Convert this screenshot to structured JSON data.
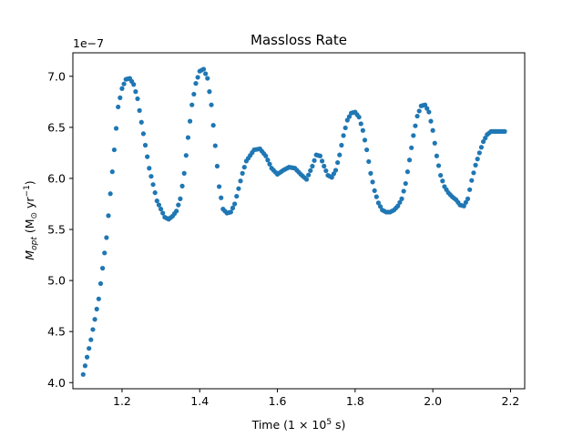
{
  "chart_data": {
    "type": "scatter",
    "title": "Massloss Rate",
    "xlabel": "Time (1 × 10",
    "xlabel_exp": "5",
    "xlabel_suffix": " s)",
    "ylabel_main": "M",
    "ylabel_sub": "opt",
    "ylabel_unit_pre": " (M",
    "ylabel_unit_sun": "⊙",
    "ylabel_unit_mid": " yr",
    "ylabel_unit_exp": "−1",
    "ylabel_unit_post": ")",
    "y_offset_label": "1e−7",
    "xlim": [
      1.0735,
      2.2365
    ],
    "ylim": [
      3.94,
      7.23
    ],
    "x_ticks": [
      1.2,
      1.4,
      1.6,
      1.8,
      2.0,
      2.2
    ],
    "x_tick_labels": [
      "1.2",
      "1.4",
      "1.6",
      "1.8",
      "2.0",
      "2.2"
    ],
    "y_ticks": [
      4.0,
      4.5,
      5.0,
      5.5,
      6.0,
      6.5,
      7.0
    ],
    "y_tick_labels": [
      "4.0",
      "4.5",
      "5.0",
      "5.5",
      "6.0",
      "6.5",
      "7.0"
    ],
    "grid": false,
    "marker_color": "#1f77b4",
    "series": [
      {
        "x_start": 1.1,
        "x_end": 2.185,
        "x_step": 0.005,
        "curve_x": [
          1.1,
          1.12,
          1.14,
          1.16,
          1.18,
          1.19,
          1.2,
          1.21,
          1.22,
          1.23,
          1.24,
          1.25,
          1.27,
          1.29,
          1.31,
          1.32,
          1.33,
          1.34,
          1.35,
          1.36,
          1.37,
          1.38,
          1.39,
          1.4,
          1.41,
          1.42,
          1.43,
          1.44,
          1.45,
          1.46,
          1.47,
          1.48,
          1.49,
          1.5,
          1.51,
          1.52,
          1.54,
          1.555,
          1.57,
          1.585,
          1.6,
          1.615,
          1.63,
          1.645,
          1.66,
          1.675,
          1.69,
          1.7,
          1.71,
          1.72,
          1.73,
          1.74,
          1.75,
          1.76,
          1.77,
          1.78,
          1.79,
          1.8,
          1.81,
          1.82,
          1.83,
          1.84,
          1.85,
          1.86,
          1.87,
          1.88,
          1.89,
          1.9,
          1.91,
          1.92,
          1.93,
          1.94,
          1.95,
          1.96,
          1.97,
          1.98,
          1.99,
          2.0,
          2.01,
          2.02,
          2.03,
          2.04,
          2.05,
          2.06,
          2.07,
          2.08,
          2.09,
          2.1,
          2.11,
          2.12,
          2.13,
          2.14,
          2.15,
          2.16,
          2.17,
          2.185
        ],
        "curve_y": [
          4.08,
          4.42,
          4.82,
          5.42,
          6.28,
          6.7,
          6.88,
          6.97,
          6.98,
          6.92,
          6.78,
          6.55,
          6.1,
          5.78,
          5.62,
          5.6,
          5.63,
          5.68,
          5.8,
          6.05,
          6.4,
          6.72,
          6.93,
          7.05,
          7.07,
          6.98,
          6.72,
          6.32,
          5.92,
          5.7,
          5.66,
          5.67,
          5.75,
          5.9,
          6.05,
          6.17,
          6.28,
          6.29,
          6.22,
          6.1,
          6.04,
          6.08,
          6.11,
          6.1,
          6.04,
          5.99,
          6.12,
          6.23,
          6.22,
          6.12,
          6.03,
          6.01,
          6.08,
          6.23,
          6.42,
          6.57,
          6.64,
          6.65,
          6.6,
          6.47,
          6.28,
          6.05,
          5.88,
          5.76,
          5.69,
          5.67,
          5.67,
          5.69,
          5.73,
          5.8,
          5.95,
          6.18,
          6.42,
          6.61,
          6.71,
          6.72,
          6.65,
          6.47,
          6.22,
          6.03,
          5.92,
          5.86,
          5.82,
          5.79,
          5.74,
          5.73,
          5.8,
          5.98,
          6.13,
          6.25,
          6.36,
          6.43,
          6.46,
          6.46,
          6.46,
          6.46
        ]
      }
    ]
  }
}
